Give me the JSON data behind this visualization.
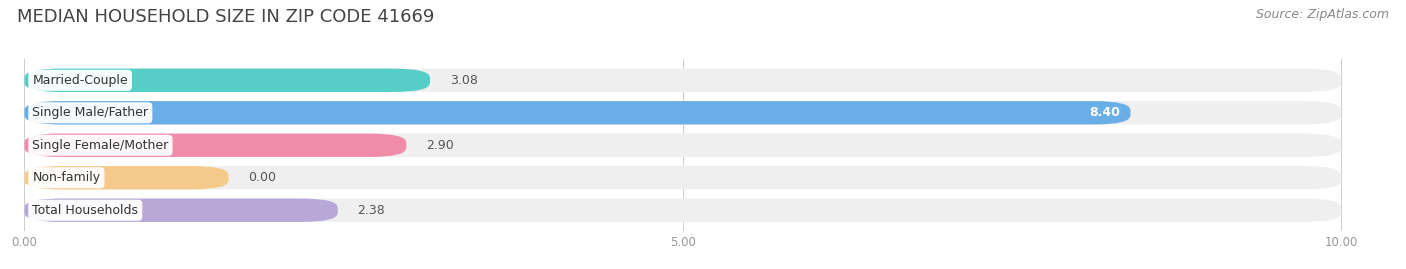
{
  "title": "MEDIAN HOUSEHOLD SIZE IN ZIP CODE 41669",
  "source": "Source: ZipAtlas.com",
  "categories": [
    "Married-Couple",
    "Single Male/Father",
    "Single Female/Mother",
    "Non-family",
    "Total Households"
  ],
  "values": [
    3.08,
    8.4,
    2.9,
    0.0,
    2.38
  ],
  "bar_colors": [
    "#56cec8",
    "#6aaee8",
    "#f08caa",
    "#f5c98a",
    "#b8a8d8"
  ],
  "bar_bg_color": "#efefef",
  "xlim": [
    0,
    10
  ],
  "xticks": [
    0.0,
    5.0,
    10.0
  ],
  "xtick_labels": [
    "0.00",
    "5.00",
    "10.00"
  ],
  "title_fontsize": 13,
  "source_fontsize": 9,
  "label_fontsize": 9,
  "value_fontsize": 9,
  "bar_height": 0.72,
  "bar_gap": 0.28,
  "fig_bg_color": "#ffffff",
  "axes_bg_color": "#ffffff",
  "nonfamily_min_bar": 1.55
}
